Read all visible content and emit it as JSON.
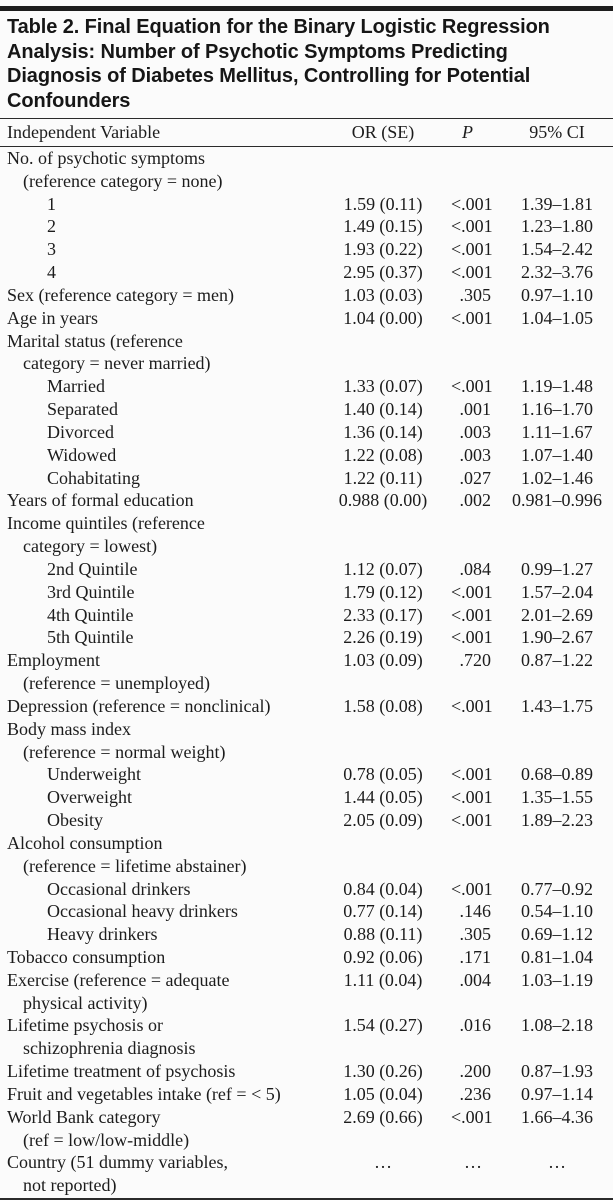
{
  "colors": {
    "top_bar": "#1d1d1d",
    "rule": "#2b2b2b",
    "text": "#1c1c1c",
    "background": "#fbfbfb"
  },
  "table": {
    "title_lines": [
      "Table 2. Final Equation for the Binary Logistic Regression",
      "Analysis: Number of Psychotic Symptoms Predicting",
      "Diagnosis of Diabetes Mellitus, Controlling for Potential",
      "Confounders"
    ],
    "title": "Table 2. Final Equation for the Binary Logistic Regression Analysis: Number of Psychotic Symptoms Predicting Diagnosis of Diabetes Mellitus, Controlling for Potential Confounders",
    "columns": [
      "Independent Variable",
      "OR (SE)",
      "P",
      "95% CI"
    ],
    "rows": [
      {
        "label": "No. of psychotic symptoms",
        "indent": 0,
        "or_se": "",
        "p": "",
        "ci": ""
      },
      {
        "label": "(reference category = none)",
        "indent": 1,
        "or_se": "",
        "p": "",
        "ci": ""
      },
      {
        "label": "1",
        "indent": 2,
        "or_se": "1.59 (0.11)",
        "p": "<.001",
        "ci": "1.39–1.81"
      },
      {
        "label": "2",
        "indent": 2,
        "or_se": "1.49 (0.15)",
        "p": "<.001",
        "ci": "1.23–1.80"
      },
      {
        "label": "3",
        "indent": 2,
        "or_se": "1.93 (0.22)",
        "p": "<.001",
        "ci": "1.54–2.42"
      },
      {
        "label": "4",
        "indent": 2,
        "or_se": "2.95 (0.37)",
        "p": "<.001",
        "ci": "2.32–3.76"
      },
      {
        "label": "Sex (reference category = men)",
        "indent": 0,
        "or_se": "1.03 (0.03)",
        "p": ".305",
        "ci": "0.97–1.10"
      },
      {
        "label": "Age in years",
        "indent": 0,
        "or_se": "1.04 (0.00)",
        "p": "<.001",
        "ci": "1.04–1.05"
      },
      {
        "label": "Marital status (reference",
        "indent": 0,
        "or_se": "",
        "p": "",
        "ci": ""
      },
      {
        "label": "category = never married)",
        "indent": 1,
        "or_se": "",
        "p": "",
        "ci": ""
      },
      {
        "label": "Married",
        "indent": 2,
        "or_se": "1.33 (0.07)",
        "p": "<.001",
        "ci": "1.19–1.48"
      },
      {
        "label": "Separated",
        "indent": 2,
        "or_se": "1.40 (0.14)",
        "p": ".001",
        "ci": "1.16–1.70"
      },
      {
        "label": "Divorced",
        "indent": 2,
        "or_se": "1.36 (0.14)",
        "p": ".003",
        "ci": "1.11–1.67"
      },
      {
        "label": "Widowed",
        "indent": 2,
        "or_se": "1.22 (0.08)",
        "p": ".003",
        "ci": "1.07–1.40"
      },
      {
        "label": "Cohabitating",
        "indent": 2,
        "or_se": "1.22 (0.11)",
        "p": ".027",
        "ci": "1.02–1.46"
      },
      {
        "label": "Years of formal education",
        "indent": 0,
        "or_se": "0.988 (0.00)",
        "p": ".002",
        "ci": "0.981–0.996"
      },
      {
        "label": "Income quintiles (reference",
        "indent": 0,
        "or_se": "",
        "p": "",
        "ci": ""
      },
      {
        "label": "category = lowest)",
        "indent": 1,
        "or_se": "",
        "p": "",
        "ci": ""
      },
      {
        "label": "2nd Quintile",
        "indent": 2,
        "or_se": "1.12 (0.07)",
        "p": ".084",
        "ci": "0.99–1.27"
      },
      {
        "label": "3rd Quintile",
        "indent": 2,
        "or_se": "1.79 (0.12)",
        "p": "<.001",
        "ci": "1.57–2.04"
      },
      {
        "label": "4th Quintile",
        "indent": 2,
        "or_se": "2.33 (0.17)",
        "p": "<.001",
        "ci": "2.01–2.69"
      },
      {
        "label": "5th Quintile",
        "indent": 2,
        "or_se": "2.26 (0.19)",
        "p": "<.001",
        "ci": "1.90–2.67"
      },
      {
        "label": "Employment",
        "indent": 0,
        "or_se": "1.03 (0.09)",
        "p": ".720",
        "ci": "0.87–1.22"
      },
      {
        "label": "(reference = unemployed)",
        "indent": 1,
        "or_se": "",
        "p": "",
        "ci": ""
      },
      {
        "label": "Depression (reference = nonclinical)",
        "indent": 0,
        "or_se": "1.58 (0.08)",
        "p": "<.001",
        "ci": "1.43–1.75"
      },
      {
        "label": "Body mass index",
        "indent": 0,
        "or_se": "",
        "p": "",
        "ci": ""
      },
      {
        "label": "(reference = normal weight)",
        "indent": 1,
        "or_se": "",
        "p": "",
        "ci": ""
      },
      {
        "label": "Underweight",
        "indent": 2,
        "or_se": "0.78 (0.05)",
        "p": "<.001",
        "ci": "0.68–0.89"
      },
      {
        "label": "Overweight",
        "indent": 2,
        "or_se": "1.44 (0.05)",
        "p": "<.001",
        "ci": "1.35–1.55"
      },
      {
        "label": "Obesity",
        "indent": 2,
        "or_se": "2.05 (0.09)",
        "p": "<.001",
        "ci": "1.89–2.23"
      },
      {
        "label": "Alcohol consumption",
        "indent": 0,
        "or_se": "",
        "p": "",
        "ci": ""
      },
      {
        "label": "(reference = lifetime abstainer)",
        "indent": 1,
        "or_se": "",
        "p": "",
        "ci": ""
      },
      {
        "label": "Occasional drinkers",
        "indent": 2,
        "or_se": "0.84 (0.04)",
        "p": "<.001",
        "ci": "0.77–0.92"
      },
      {
        "label": "Occasional heavy drinkers",
        "indent": 2,
        "or_se": "0.77 (0.14)",
        "p": ".146",
        "ci": "0.54–1.10"
      },
      {
        "label": "Heavy drinkers",
        "indent": 2,
        "or_se": "0.88 (0.11)",
        "p": ".305",
        "ci": "0.69–1.12"
      },
      {
        "label": "Tobacco consumption",
        "indent": 0,
        "or_se": "0.92 (0.06)",
        "p": ".171",
        "ci": "0.81–1.04"
      },
      {
        "label": "Exercise (reference = adequate",
        "indent": 0,
        "or_se": "1.11 (0.04)",
        "p": ".004",
        "ci": "1.03–1.19"
      },
      {
        "label": "physical activity)",
        "indent": 1,
        "or_se": "",
        "p": "",
        "ci": ""
      },
      {
        "label": "Lifetime psychosis or",
        "indent": 0,
        "or_se": "1.54 (0.27)",
        "p": ".016",
        "ci": "1.08–2.18"
      },
      {
        "label": "schizophrenia diagnosis",
        "indent": 1,
        "or_se": "",
        "p": "",
        "ci": ""
      },
      {
        "label": "Lifetime treatment of psychosis",
        "indent": 0,
        "or_se": "1.30 (0.26)",
        "p": ".200",
        "ci": "0.87–1.93"
      },
      {
        "label": "Fruit and vegetables intake (ref = < 5)",
        "indent": 0,
        "or_se": "1.05 (0.04)",
        "p": ".236",
        "ci": "0.97–1.14"
      },
      {
        "label": "World Bank category",
        "indent": 0,
        "or_se": "2.69 (0.66)",
        "p": "<.001",
        "ci": "1.66–4.36"
      },
      {
        "label": "(ref = low/low-middle)",
        "indent": 1,
        "or_se": "",
        "p": "",
        "ci": ""
      },
      {
        "label": "Country (51 dummy variables,",
        "indent": 0,
        "or_se": "…",
        "p": "…",
        "ci": "…"
      },
      {
        "label": "not reported)",
        "indent": 1,
        "or_se": "",
        "p": "",
        "ci": ""
      }
    ]
  }
}
